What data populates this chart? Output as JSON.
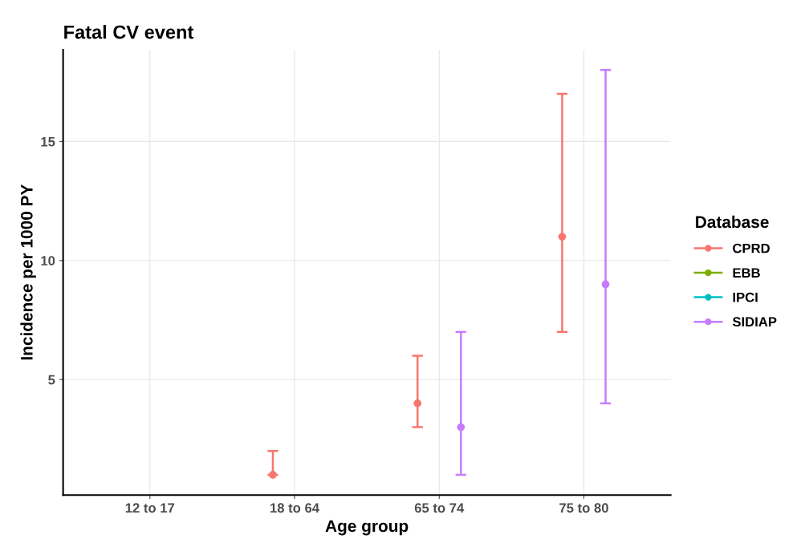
{
  "chart_data": {
    "type": "scatter",
    "title": "Fatal CV event",
    "xlabel": "Age group",
    "ylabel": "Incidence per 1000 PY",
    "legend_title": "Database",
    "categories": [
      "12 to 17",
      "18 to 64",
      "65 to 74",
      "75 to 80"
    ],
    "series": [
      {
        "name": "CPRD",
        "color": "#f8766d",
        "values": [
          null,
          1,
          4,
          11
        ],
        "errors": [
          null,
          [
            1,
            2
          ],
          [
            3,
            6
          ],
          [
            7,
            17
          ]
        ]
      },
      {
        "name": "EBB",
        "color": "#7cae00",
        "values": [
          null,
          null,
          null,
          null
        ]
      },
      {
        "name": "IPCI",
        "color": "#00bfc4",
        "values": [
          null,
          null,
          null,
          null
        ]
      },
      {
        "name": "SIDIAP",
        "color": "#c77cff",
        "values": [
          null,
          null,
          3,
          9
        ],
        "errors": [
          null,
          null,
          [
            1,
            7
          ],
          [
            4,
            18
          ]
        ]
      }
    ],
    "ylim": [
      0.15,
      18.85
    ],
    "yticks": [
      5,
      10,
      15
    ],
    "grid": true,
    "legend": "right",
    "marker": "circle"
  }
}
